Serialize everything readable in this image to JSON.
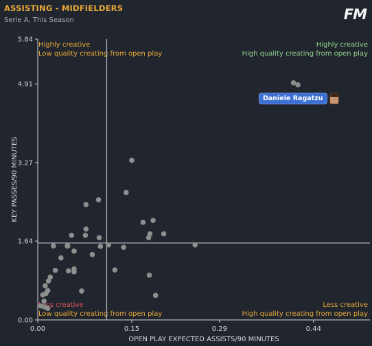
{
  "header": {
    "title": "ASSISTING - MIDFIELDERS",
    "subtitle": "Serie A, This Season",
    "logo_text": "FM"
  },
  "quadrants": {
    "top_left": [
      "Highly creative",
      "Low quality creating from open play"
    ],
    "top_right": [
      "Highly creative",
      "High quality creating from open play"
    ],
    "bottom_left": [
      "Less creative",
      "Low quality creating from open play"
    ],
    "bottom_right": [
      "Less creative",
      "High quality creating from open play"
    ]
  },
  "colors": {
    "background": "#21252d",
    "title": "#e6a83a",
    "point": "#8e8e8e",
    "axis": "#d4d6da",
    "quad_orange": "#e6a83a",
    "quad_green": "#8fd18e",
    "quad_red": "#e0545c",
    "highlight": "#3b6fd1"
  },
  "chart_data": {
    "type": "scatter",
    "xlabel": "OPEN PLAY EXPECTED ASSISTS/90 MINUTES",
    "ylabel": "KEY PASSES/90 MINUTES",
    "xlim": [
      0,
      0.53
    ],
    "ylim": [
      0,
      5.84
    ],
    "x_ticks": [
      "0.00",
      "0.15",
      "0.29",
      "0.44"
    ],
    "x_tick_values": [
      0.0,
      0.15,
      0.29,
      0.44
    ],
    "y_ticks": [
      "0.00",
      "1.64",
      "3.27",
      "4.91",
      "5.84"
    ],
    "y_tick_values": [
      0.0,
      1.64,
      3.27,
      4.91,
      5.84
    ],
    "x_avg": 0.11,
    "y_avg": 1.6,
    "highlight": {
      "name": "Daniele Ragatzu",
      "x": 0.415,
      "y": 4.91
    },
    "points": [
      {
        "x": 0.408,
        "y": 4.93
      },
      {
        "x": 0.415,
        "y": 4.89
      },
      {
        "x": 0.15,
        "y": 3.32
      },
      {
        "x": 0.141,
        "y": 2.65
      },
      {
        "x": 0.097,
        "y": 2.5
      },
      {
        "x": 0.077,
        "y": 2.4
      },
      {
        "x": 0.184,
        "y": 2.07
      },
      {
        "x": 0.168,
        "y": 2.03
      },
      {
        "x": 0.077,
        "y": 1.89
      },
      {
        "x": 0.201,
        "y": 1.79
      },
      {
        "x": 0.179,
        "y": 1.79
      },
      {
        "x": 0.054,
        "y": 1.76
      },
      {
        "x": 0.076,
        "y": 1.76
      },
      {
        "x": 0.177,
        "y": 1.71
      },
      {
        "x": 0.098,
        "y": 1.71
      },
      {
        "x": 0.113,
        "y": 1.56
      },
      {
        "x": 0.251,
        "y": 1.56
      },
      {
        "x": 0.025,
        "y": 1.54
      },
      {
        "x": 0.047,
        "y": 1.54
      },
      {
        "x": 0.048,
        "y": 1.54
      },
      {
        "x": 0.1,
        "y": 1.53
      },
      {
        "x": 0.137,
        "y": 1.51
      },
      {
        "x": 0.058,
        "y": 1.43
      },
      {
        "x": 0.087,
        "y": 1.36
      },
      {
        "x": 0.037,
        "y": 1.29
      },
      {
        "x": 0.058,
        "y": 1.06
      },
      {
        "x": 0.123,
        "y": 1.04
      },
      {
        "x": 0.028,
        "y": 1.03
      },
      {
        "x": 0.049,
        "y": 1.02
      },
      {
        "x": 0.058,
        "y": 1.0
      },
      {
        "x": 0.178,
        "y": 0.93
      },
      {
        "x": 0.02,
        "y": 0.89
      },
      {
        "x": 0.017,
        "y": 0.81
      },
      {
        "x": 0.012,
        "y": 0.71
      },
      {
        "x": 0.07,
        "y": 0.6
      },
      {
        "x": 0.016,
        "y": 0.61
      },
      {
        "x": 0.013,
        "y": 0.55
      },
      {
        "x": 0.008,
        "y": 0.52
      },
      {
        "x": 0.188,
        "y": 0.51
      },
      {
        "x": 0.01,
        "y": 0.39
      },
      {
        "x": 0.005,
        "y": 0.29
      },
      {
        "x": 0.011,
        "y": 0.27
      },
      {
        "x": 0.016,
        "y": 0.24
      }
    ]
  }
}
